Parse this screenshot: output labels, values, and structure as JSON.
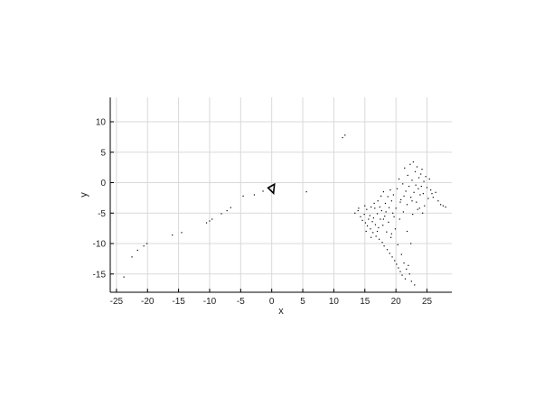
{
  "chart_data": {
    "type": "scatter",
    "title": "",
    "xlabel": "x",
    "ylabel": "y",
    "xlim": [
      -26,
      29
    ],
    "ylim": [
      -18,
      14
    ],
    "grid": true,
    "x_ticks": [
      -25,
      -20,
      -15,
      -10,
      -5,
      0,
      5,
      10,
      15,
      20,
      25
    ],
    "y_ticks": [
      -15,
      -10,
      -5,
      0,
      5,
      10
    ],
    "marker_color": "#000000",
    "grid_color": "#d9d9d9",
    "axis_color": "#000000",
    "camera_marker": {
      "shape": "triangle",
      "x": 0,
      "y": -1,
      "color": "#000000"
    },
    "series": [
      {
        "points": [
          [
            -23.8,
            -15.5
          ],
          [
            -22.5,
            -12.2
          ],
          [
            -21.6,
            -11.1
          ],
          [
            -20.6,
            -10.4
          ],
          [
            -20.1,
            -10.0
          ],
          [
            -16.0,
            -8.6
          ],
          [
            -14.5,
            -8.2
          ],
          [
            -10.5,
            -6.6
          ],
          [
            -10.0,
            -6.3
          ],
          [
            -9.6,
            -6.0
          ],
          [
            -8.1,
            -5.1
          ],
          [
            -7.2,
            -4.6
          ],
          [
            -6.6,
            -4.1
          ],
          [
            -4.6,
            -2.2
          ],
          [
            -2.8,
            -2.0
          ],
          [
            -1.4,
            -1.4
          ],
          [
            5.6,
            -1.5
          ],
          [
            11.4,
            7.4
          ],
          [
            11.8,
            7.8
          ],
          [
            13.4,
            -5.0
          ],
          [
            13.9,
            -4.6
          ],
          [
            14.3,
            -5.6
          ],
          [
            14.6,
            -6.2
          ],
          [
            14.9,
            -5.2
          ],
          [
            15.1,
            -6.6
          ],
          [
            15.3,
            -4.4
          ],
          [
            15.4,
            -7.1
          ],
          [
            15.6,
            -6.0
          ],
          [
            15.8,
            -5.4
          ],
          [
            15.9,
            -7.6
          ],
          [
            16.0,
            -4.0
          ],
          [
            16.2,
            -6.4
          ],
          [
            16.3,
            -8.2
          ],
          [
            16.4,
            -5.8
          ],
          [
            16.6,
            -4.2
          ],
          [
            16.7,
            -6.9
          ],
          [
            16.8,
            -8.8
          ],
          [
            17.0,
            -5.1
          ],
          [
            17.1,
            -3.0
          ],
          [
            17.2,
            -7.4
          ],
          [
            17.3,
            -9.3
          ],
          [
            17.5,
            -6.0
          ],
          [
            17.6,
            -2.2
          ],
          [
            17.7,
            -4.6
          ],
          [
            17.8,
            -9.8
          ],
          [
            17.9,
            -7.0
          ],
          [
            18.0,
            -1.5
          ],
          [
            18.1,
            -10.4
          ],
          [
            18.2,
            -5.5
          ],
          [
            18.3,
            -3.4
          ],
          [
            18.5,
            -8.1
          ],
          [
            18.6,
            -11.0
          ],
          [
            18.7,
            -2.3
          ],
          [
            18.8,
            -6.5
          ],
          [
            18.9,
            -4.1
          ],
          [
            19.0,
            -11.6
          ],
          [
            19.1,
            -1.2
          ],
          [
            19.2,
            -9.0
          ],
          [
            19.3,
            -3.0
          ],
          [
            19.4,
            -12.2
          ],
          [
            19.5,
            -5.0
          ],
          [
            19.6,
            -2.0
          ],
          [
            19.8,
            -12.8
          ],
          [
            19.9,
            -7.6
          ],
          [
            20.0,
            -4.2
          ],
          [
            20.1,
            -13.4
          ],
          [
            20.2,
            -1.0
          ],
          [
            20.3,
            -10.2
          ],
          [
            20.4,
            -14.0
          ],
          [
            20.5,
            0.6
          ],
          [
            20.6,
            -6.0
          ],
          [
            20.7,
            -14.6
          ],
          [
            20.8,
            -2.8
          ],
          [
            20.9,
            -11.8
          ],
          [
            21.0,
            -15.2
          ],
          [
            21.1,
            -0.2
          ],
          [
            21.2,
            -4.8
          ],
          [
            21.3,
            -13.2
          ],
          [
            21.4,
            2.4
          ],
          [
            21.5,
            -15.8
          ],
          [
            21.6,
            -1.4
          ],
          [
            21.7,
            -14.2
          ],
          [
            21.8,
            -3.6
          ],
          [
            21.9,
            1.2
          ],
          [
            22.0,
            -13.6
          ],
          [
            22.1,
            -0.6
          ],
          [
            22.2,
            -15.0
          ],
          [
            22.3,
            3.0
          ],
          [
            22.4,
            -2.4
          ],
          [
            22.5,
            -16.2
          ],
          [
            22.6,
            0.4
          ],
          [
            22.7,
            -5.2
          ],
          [
            22.8,
            3.4
          ],
          [
            22.9,
            -1.6
          ],
          [
            23.0,
            -16.8
          ],
          [
            23.1,
            1.8
          ],
          [
            23.2,
            -0.4
          ],
          [
            23.3,
            -3.2
          ],
          [
            23.4,
            2.6
          ],
          [
            23.6,
            -1.0
          ],
          [
            23.7,
            0.8
          ],
          [
            23.8,
            -4.2
          ],
          [
            23.9,
            -2.0
          ],
          [
            24.0,
            1.4
          ],
          [
            24.1,
            -0.6
          ],
          [
            24.2,
            2.2
          ],
          [
            24.4,
            -1.8
          ],
          [
            24.5,
            0.2
          ],
          [
            24.6,
            -3.8
          ],
          [
            24.8,
            1.0
          ],
          [
            25.0,
            -0.8
          ],
          [
            25.2,
            -2.6
          ],
          [
            25.4,
            0.6
          ],
          [
            25.6,
            -1.2
          ],
          [
            25.8,
            -1.8
          ],
          [
            26.0,
            -2.4
          ],
          [
            26.4,
            -1.6
          ],
          [
            26.8,
            -3.0
          ],
          [
            27.2,
            -3.6
          ],
          [
            27.6,
            -3.8
          ],
          [
            28.0,
            -4.0
          ],
          [
            14.0,
            -4.2
          ],
          [
            15.0,
            -3.8
          ],
          [
            16.5,
            -3.4
          ],
          [
            17.4,
            -4.0
          ],
          [
            18.4,
            -4.8
          ],
          [
            19.7,
            -5.6
          ],
          [
            20.7,
            -3.2
          ],
          [
            21.3,
            -2.2
          ],
          [
            22.6,
            -3.0
          ],
          [
            23.5,
            -4.4
          ],
          [
            24.3,
            -5.0
          ],
          [
            19.3,
            -8.4
          ],
          [
            18.0,
            -6.0
          ],
          [
            17.0,
            -8.0
          ],
          [
            16.0,
            -9.0
          ],
          [
            15.2,
            -8.0
          ],
          [
            21.8,
            -8.0
          ],
          [
            22.4,
            -10.0
          ]
        ]
      }
    ]
  }
}
